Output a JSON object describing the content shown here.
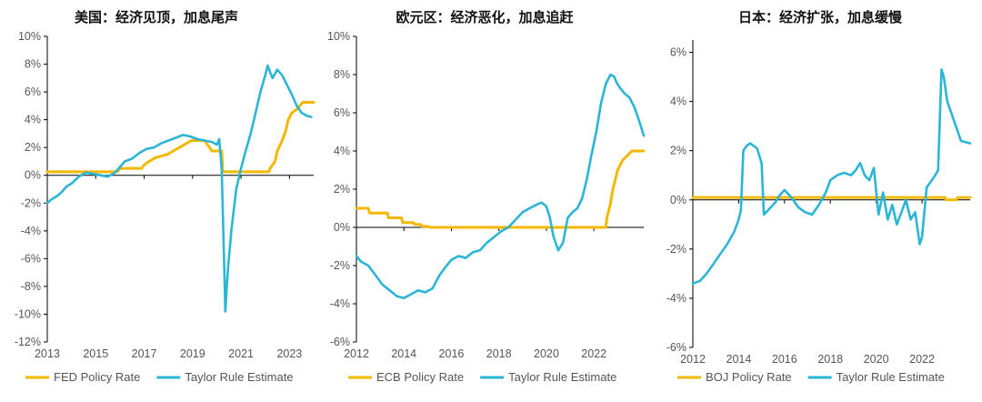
{
  "colors": {
    "policy": "#F5B800",
    "taylor": "#2BB5D6",
    "axis": "#000000",
    "text": "#555555"
  },
  "chart_data": [
    {
      "type": "line",
      "title": "美国：经济见顶，加息尾声",
      "xlim": [
        2013,
        2024
      ],
      "ylim": [
        -12,
        10
      ],
      "yticks": [
        -12,
        -10,
        -8,
        -6,
        -4,
        -2,
        0,
        2,
        4,
        6,
        8,
        10
      ],
      "ytick_labels": [
        "-12%",
        "-10%",
        "-8%",
        "-6%",
        "-4%",
        "-2%",
        "0%",
        "2%",
        "4%",
        "6%",
        "8%",
        "10%"
      ],
      "xticks": [
        2013,
        2015,
        2017,
        2019,
        2021,
        2023
      ],
      "xtick_labels": [
        "2013",
        "2015",
        "2017",
        "2019",
        "2021",
        "2023"
      ],
      "grid": false,
      "legend_position": "bottom",
      "series": [
        {
          "name": "FED Policy Rate",
          "key": "policy",
          "x": [
            2013,
            2015.9,
            2016,
            2016.9,
            2017,
            2017.2,
            2017.45,
            2017.95,
            2018.2,
            2018.45,
            2018.7,
            2018.95,
            2019.5,
            2019.6,
            2019.8,
            2020.2,
            2020.25,
            2022.15,
            2022.2,
            2022.4,
            2022.5,
            2022.7,
            2022.85,
            2022.95,
            2023.1,
            2023.3,
            2023.55,
            2024
          ],
          "y": [
            0.25,
            0.25,
            0.5,
            0.5,
            0.75,
            1.0,
            1.25,
            1.5,
            1.75,
            2.0,
            2.25,
            2.5,
            2.5,
            2.25,
            1.75,
            1.75,
            0.25,
            0.25,
            0.5,
            1.0,
            1.75,
            2.5,
            3.25,
            4.0,
            4.5,
            4.75,
            5.25,
            5.25
          ]
        },
        {
          "name": "Taylor Rule Estimate",
          "key": "taylor",
          "x": [
            2013,
            2013.2,
            2013.4,
            2013.6,
            2013.8,
            2014,
            2014.3,
            2014.6,
            2014.9,
            2015.2,
            2015.5,
            2015.8,
            2016,
            2016.2,
            2016.5,
            2016.8,
            2017.1,
            2017.4,
            2017.7,
            2018,
            2018.3,
            2018.6,
            2018.9,
            2019.2,
            2019.5,
            2019.8,
            2020.0,
            2020.1,
            2020.2,
            2020.3,
            2020.35,
            2020.45,
            2020.6,
            2020.8,
            2021.0,
            2021.2,
            2021.4,
            2021.6,
            2021.8,
            2022.0,
            2022.1,
            2022.2,
            2022.3,
            2022.5,
            2022.7,
            2022.9,
            2023.1,
            2023.3,
            2023.5,
            2023.7,
            2023.9
          ],
          "y": [
            -2.0,
            -1.7,
            -1.5,
            -1.2,
            -0.8,
            -0.6,
            -0.1,
            0.2,
            0.1,
            0.0,
            -0.1,
            0.2,
            0.6,
            1.0,
            1.2,
            1.6,
            1.9,
            2.0,
            2.3,
            2.5,
            2.7,
            2.9,
            2.8,
            2.6,
            2.5,
            2.4,
            2.2,
            2.6,
            0.5,
            -6.0,
            -9.8,
            -7.0,
            -4.0,
            -1.0,
            0.5,
            1.8,
            3.0,
            4.5,
            6.0,
            7.2,
            7.9,
            7.4,
            7.0,
            7.6,
            7.2,
            6.5,
            5.8,
            5.0,
            4.5,
            4.3,
            4.2
          ]
        }
      ]
    },
    {
      "type": "line",
      "title": "欧元区：经济恶化，加息追赶",
      "xlim": [
        2012,
        2024.1
      ],
      "ylim": [
        -6,
        10
      ],
      "yticks": [
        -6,
        -4,
        -2,
        0,
        2,
        4,
        6,
        8,
        10
      ],
      "ytick_labels": [
        "-6%",
        "-4%",
        "-2%",
        "0%",
        "2%",
        "4%",
        "6%",
        "8%",
        "10%"
      ],
      "xticks": [
        2012,
        2014,
        2016,
        2018,
        2020,
        2022
      ],
      "xtick_labels": [
        "2012",
        "2014",
        "2016",
        "2018",
        "2020",
        "2022"
      ],
      "grid": false,
      "legend_position": "bottom",
      "series": [
        {
          "name": "ECB Policy Rate",
          "key": "policy",
          "x": [
            2012,
            2012.5,
            2012.55,
            2013.3,
            2013.35,
            2013.9,
            2013.95,
            2014.4,
            2014.45,
            2014.7,
            2014.75,
            2015.0,
            2015.1,
            2016.2,
            2016.25,
            2022.5,
            2022.55,
            2022.7,
            2022.8,
            2022.9,
            2023.0,
            2023.2,
            2023.4,
            2023.6,
            2023.8,
            2024.1
          ],
          "y": [
            1.0,
            1.0,
            0.75,
            0.75,
            0.5,
            0.5,
            0.25,
            0.25,
            0.15,
            0.15,
            0.05,
            0.05,
            0.0,
            0.0,
            0.0,
            0.0,
            0.5,
            1.25,
            2.0,
            2.5,
            3.0,
            3.5,
            3.75,
            4.0,
            4.0,
            4.0
          ]
        },
        {
          "name": "Taylor Rule Estimate",
          "key": "taylor",
          "x": [
            2012,
            2012.2,
            2012.5,
            2012.8,
            2013.1,
            2013.4,
            2013.7,
            2014.0,
            2014.3,
            2014.6,
            2014.9,
            2015.2,
            2015.5,
            2015.8,
            2016.0,
            2016.3,
            2016.6,
            2016.9,
            2017.2,
            2017.5,
            2017.8,
            2018.1,
            2018.4,
            2018.7,
            2019.0,
            2019.3,
            2019.6,
            2019.8,
            2020.0,
            2020.15,
            2020.3,
            2020.5,
            2020.7,
            2020.9,
            2021.1,
            2021.3,
            2021.5,
            2021.7,
            2021.9,
            2022.1,
            2022.3,
            2022.5,
            2022.7,
            2022.85,
            2022.95,
            2023.1,
            2023.3,
            2023.5,
            2023.7,
            2023.9,
            2024.1
          ],
          "y": [
            -1.5,
            -1.8,
            -2.0,
            -2.5,
            -3.0,
            -3.3,
            -3.6,
            -3.7,
            -3.5,
            -3.3,
            -3.4,
            -3.2,
            -2.5,
            -2.0,
            -1.7,
            -1.5,
            -1.6,
            -1.3,
            -1.2,
            -0.8,
            -0.5,
            -0.2,
            0.0,
            0.4,
            0.8,
            1.0,
            1.2,
            1.3,
            1.1,
            0.5,
            -0.5,
            -1.2,
            -0.8,
            0.5,
            0.8,
            1.0,
            1.5,
            2.5,
            3.8,
            5.0,
            6.5,
            7.5,
            8.0,
            7.9,
            7.6,
            7.3,
            7.0,
            6.8,
            6.3,
            5.6,
            4.8
          ]
        }
      ]
    },
    {
      "type": "line",
      "title": "日本：经济扩张，加息缓慢",
      "xlim": [
        2012,
        2024.1
      ],
      "ylim": [
        -6,
        6.5
      ],
      "yticks": [
        -6,
        -4,
        -2,
        0,
        2,
        4,
        6
      ],
      "ytick_labels": [
        "-6%",
        "-4%",
        "-2%",
        "0%",
        "2%",
        "4%",
        "6%"
      ],
      "xticks": [
        2012,
        2014,
        2016,
        2018,
        2020,
        2022
      ],
      "xtick_labels": [
        "2012",
        "2014",
        "2016",
        "2018",
        "2020",
        "2022"
      ],
      "grid": false,
      "legend_position": "bottom",
      "series": [
        {
          "name": "BOJ Policy Rate",
          "key": "policy",
          "x": [
            2012,
            2016.0,
            2016.1,
            2023.0,
            2023.05,
            2023.5,
            2023.55,
            2024.1
          ],
          "y": [
            0.1,
            0.1,
            0.1,
            0.1,
            0.0,
            0.0,
            0.1,
            0.1
          ]
        },
        {
          "name": "Taylor Rule Estimate",
          "key": "taylor",
          "x": [
            2012,
            2012.3,
            2012.6,
            2012.9,
            2013.2,
            2013.5,
            2013.8,
            2014.0,
            2014.1,
            2014.2,
            2014.35,
            2014.5,
            2014.8,
            2015.0,
            2015.1,
            2015.2,
            2015.4,
            2015.6,
            2015.8,
            2016.0,
            2016.3,
            2016.6,
            2016.9,
            2017.2,
            2017.5,
            2017.8,
            2018.0,
            2018.3,
            2018.6,
            2018.9,
            2019.1,
            2019.3,
            2019.5,
            2019.7,
            2019.9,
            2020.1,
            2020.3,
            2020.5,
            2020.7,
            2020.9,
            2021.1,
            2021.3,
            2021.5,
            2021.7,
            2021.9,
            2022.0,
            2022.2,
            2022.5,
            2022.7,
            2022.85,
            2022.95,
            2023.1,
            2023.4,
            2023.7,
            2024.1
          ],
          "y": [
            -3.4,
            -3.3,
            -3.0,
            -2.6,
            -2.2,
            -1.8,
            -1.3,
            -0.8,
            -0.4,
            2.0,
            2.2,
            2.3,
            2.1,
            1.5,
            -0.6,
            -0.5,
            -0.3,
            -0.1,
            0.2,
            0.4,
            0.1,
            -0.3,
            -0.5,
            -0.6,
            -0.2,
            0.3,
            0.8,
            1.0,
            1.1,
            1.0,
            1.2,
            1.5,
            1.0,
            0.8,
            1.3,
            -0.6,
            0.3,
            -0.8,
            -0.2,
            -1.0,
            -0.5,
            0.0,
            -0.8,
            -0.5,
            -1.8,
            -1.5,
            0.5,
            0.9,
            1.2,
            5.3,
            5.0,
            4.0,
            3.2,
            2.4,
            2.3
          ]
        }
      ]
    }
  ]
}
